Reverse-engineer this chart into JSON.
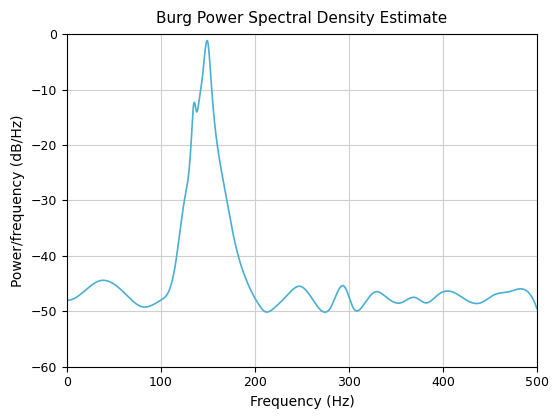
{
  "title": "Burg Power Spectral Density Estimate",
  "xlabel": "Frequency (Hz)",
  "ylabel": "Power/frequency (dB/Hz)",
  "xlim": [
    0,
    500
  ],
  "ylim": [
    -60,
    0
  ],
  "xticks": [
    0,
    100,
    200,
    300,
    400,
    500
  ],
  "yticks": [
    -60,
    -50,
    -40,
    -30,
    -20,
    -10,
    0
  ],
  "line_color": "#4AAFD5",
  "line_width": 1.2,
  "grid_color": "#d0d0d0",
  "background_color": "#ffffff",
  "title_fontsize": 11,
  "label_fontsize": 10
}
